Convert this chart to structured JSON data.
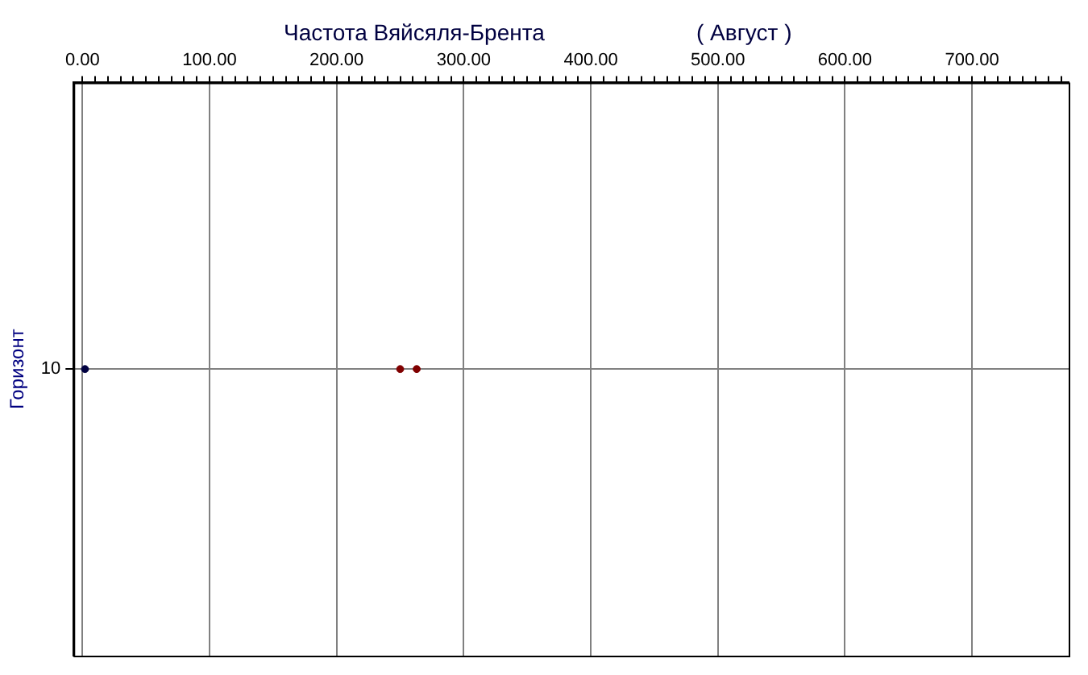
{
  "chart_data": {
    "type": "scatter",
    "title": "Частота Вяйсяля-Брента",
    "subtitle": "( Август )",
    "ylabel": "Горизонт",
    "orientation": "horizontal",
    "categories": [
      "10"
    ],
    "series": [
      {
        "type": "scatter",
        "x": [
          "10",
          "10",
          "10"
        ],
        "values": [
          2,
          250,
          263
        ],
        "colors": [
          "#000040",
          "#800000",
          "#800000"
        ]
      }
    ],
    "xlim": [
      -7,
      776
    ],
    "xticks": [
      {
        "value": 0,
        "label": "0.00"
      },
      {
        "value": 10,
        "label": null
      },
      {
        "value": 20,
        "label": null
      },
      {
        "value": 30,
        "label": null
      },
      {
        "value": 40,
        "label": null
      },
      {
        "value": 50,
        "label": null
      },
      {
        "value": 60,
        "label": null
      },
      {
        "value": 70,
        "label": null
      },
      {
        "value": 80,
        "label": null
      },
      {
        "value": 90,
        "label": null
      },
      {
        "value": 100,
        "label": "100.00"
      },
      {
        "value": 110,
        "label": null
      },
      {
        "value": 120,
        "label": null
      },
      {
        "value": 130,
        "label": null
      },
      {
        "value": 140,
        "label": null
      },
      {
        "value": 150,
        "label": null
      },
      {
        "value": 160,
        "label": null
      },
      {
        "value": 170,
        "label": null
      },
      {
        "value": 180,
        "label": null
      },
      {
        "value": 190,
        "label": null
      },
      {
        "value": 200,
        "label": "200.00"
      },
      {
        "value": 210,
        "label": null
      },
      {
        "value": 220,
        "label": null
      },
      {
        "value": 230,
        "label": null
      },
      {
        "value": 240,
        "label": null
      },
      {
        "value": 250,
        "label": null
      },
      {
        "value": 260,
        "label": null
      },
      {
        "value": 270,
        "label": null
      },
      {
        "value": 280,
        "label": null
      },
      {
        "value": 290,
        "label": null
      },
      {
        "value": 300,
        "label": "300.00"
      },
      {
        "value": 310,
        "label": null
      },
      {
        "value": 320,
        "label": null
      },
      {
        "value": 330,
        "label": null
      },
      {
        "value": 340,
        "label": null
      },
      {
        "value": 350,
        "label": null
      },
      {
        "value": 360,
        "label": null
      },
      {
        "value": 370,
        "label": null
      },
      {
        "value": 380,
        "label": null
      },
      {
        "value": 390,
        "label": null
      },
      {
        "value": 400,
        "label": "400.00"
      },
      {
        "value": 410,
        "label": null
      },
      {
        "value": 420,
        "label": null
      },
      {
        "value": 430,
        "label": null
      },
      {
        "value": 440,
        "label": null
      },
      {
        "value": 450,
        "label": null
      },
      {
        "value": 460,
        "label": null
      },
      {
        "value": 470,
        "label": null
      },
      {
        "value": 480,
        "label": null
      },
      {
        "value": 490,
        "label": null
      },
      {
        "value": 500,
        "label": "500.00"
      },
      {
        "value": 510,
        "label": null
      },
      {
        "value": 520,
        "label": null
      },
      {
        "value": 530,
        "label": null
      },
      {
        "value": 540,
        "label": null
      },
      {
        "value": 550,
        "label": null
      },
      {
        "value": 560,
        "label": null
      },
      {
        "value": 570,
        "label": null
      },
      {
        "value": 580,
        "label": null
      },
      {
        "value": 590,
        "label": null
      },
      {
        "value": 600,
        "label": "600.00"
      },
      {
        "value": 610,
        "label": null
      },
      {
        "value": 620,
        "label": null
      },
      {
        "value": 630,
        "label": null
      },
      {
        "value": 640,
        "label": null
      },
      {
        "value": 650,
        "label": null
      },
      {
        "value": 660,
        "label": null
      },
      {
        "value": 670,
        "label": null
      },
      {
        "value": 680,
        "label": null
      },
      {
        "value": 690,
        "label": null
      },
      {
        "value": 700,
        "label": "700.00"
      },
      {
        "value": 710,
        "label": null
      },
      {
        "value": 720,
        "label": null
      },
      {
        "value": 730,
        "label": null
      },
      {
        "value": 740,
        "label": null
      },
      {
        "value": 750,
        "label": null
      },
      {
        "value": 760,
        "label": null
      },
      {
        "value": 770,
        "label": null
      }
    ],
    "grid": true,
    "legend": false,
    "marker": "circle"
  }
}
